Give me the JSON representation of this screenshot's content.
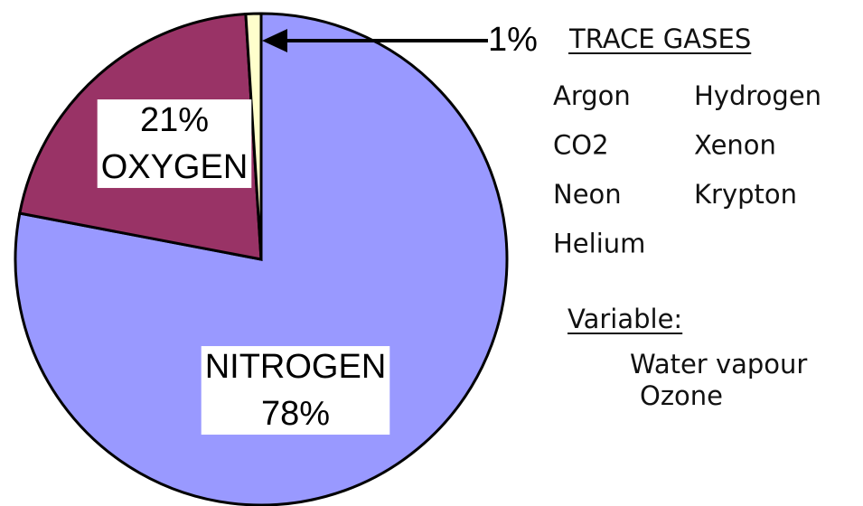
{
  "chart_data": {
    "type": "pie",
    "categories": [
      "NITROGEN",
      "OXYGEN",
      "TRACE GASES"
    ],
    "values": [
      78,
      21,
      1
    ],
    "value_labels": [
      "78%",
      "21%",
      "1%"
    ],
    "colors": [
      "#9999ff",
      "#993366",
      "#ffffcc"
    ],
    "trace_gases": [
      "Argon",
      "Hydrogen",
      "CO2",
      "Xenon",
      "Neon",
      "Krypton",
      "Helium"
    ],
    "variable_label": "Variable:",
    "variable_gases": [
      "Water vapour",
      "Ozone"
    ]
  }
}
